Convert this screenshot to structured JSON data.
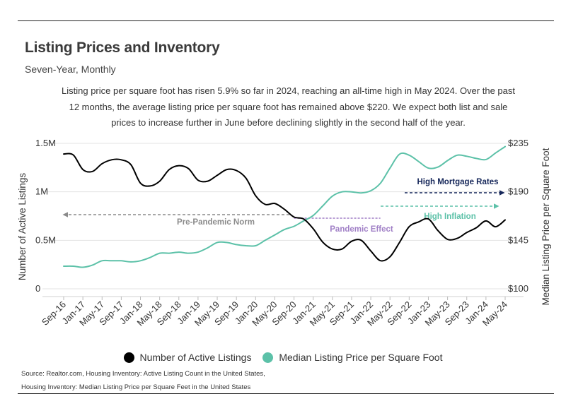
{
  "header": {
    "title": "Listing Prices and Inventory",
    "subtitle": "Seven-Year, Monthly",
    "description": "Listing price per square foot has risen 5.9% so far in 2024, reaching an all-time high in May 2024. Over the past 12 months, the average listing price per square foot has remained above $220. We expect both list and sale prices to increase further in June before declining slightly in the second half of the year."
  },
  "colors": {
    "listings": "#000000",
    "price": "#5cc1a8",
    "pandemic": "#a07fc6",
    "mortgage": "#16275a",
    "norm": "#8a8a8a"
  },
  "chart_data": {
    "type": "line",
    "x_tick_labels": [
      "Sep-16",
      "Jan-17",
      "May-17",
      "Sep-17",
      "Jan-18",
      "May-18",
      "Sep-18",
      "Jan-19",
      "May-19",
      "Sep-19",
      "Jan-20",
      "May-20",
      "Sep-20",
      "Jan-21",
      "May-21",
      "Sep-21",
      "Jan-22",
      "May-22",
      "Sep-22",
      "Jan-23",
      "May-23",
      "Sep-23",
      "Jan-24",
      "May-24"
    ],
    "x_range": [
      "2016-09",
      "2024-05"
    ],
    "y_left": {
      "label": "Number of Active Listings",
      "range": [
        0,
        1500000
      ],
      "tick_labels": [
        "0",
        "0.5M",
        "1M",
        "1.5M"
      ],
      "ticks": [
        0,
        500000,
        1000000,
        1500000
      ]
    },
    "y_right": {
      "label": "Median Listing Price per Square Foot",
      "range": [
        100,
        235
      ],
      "tick_labels": [
        "$100",
        "$145",
        "$190",
        "$235"
      ],
      "ticks": [
        100,
        145,
        190,
        235
      ]
    },
    "series": [
      {
        "name": "Number of Active Listings",
        "axis": "left",
        "points": [
          [
            "2016-09",
            1390000
          ],
          [
            "2016-11",
            1380000
          ],
          [
            "2017-01",
            1230000
          ],
          [
            "2017-03",
            1210000
          ],
          [
            "2017-05",
            1290000
          ],
          [
            "2017-07",
            1330000
          ],
          [
            "2017-09",
            1330000
          ],
          [
            "2017-11",
            1280000
          ],
          [
            "2018-01",
            1090000
          ],
          [
            "2018-03",
            1060000
          ],
          [
            "2018-05",
            1110000
          ],
          [
            "2018-07",
            1230000
          ],
          [
            "2018-09",
            1270000
          ],
          [
            "2018-11",
            1240000
          ],
          [
            "2019-01",
            1120000
          ],
          [
            "2019-03",
            1110000
          ],
          [
            "2019-05",
            1170000
          ],
          [
            "2019-07",
            1230000
          ],
          [
            "2019-09",
            1220000
          ],
          [
            "2019-11",
            1140000
          ],
          [
            "2020-01",
            960000
          ],
          [
            "2020-03",
            870000
          ],
          [
            "2020-05",
            880000
          ],
          [
            "2020-07",
            820000
          ],
          [
            "2020-09",
            740000
          ],
          [
            "2020-11",
            720000
          ],
          [
            "2021-01",
            620000
          ],
          [
            "2021-03",
            480000
          ],
          [
            "2021-05",
            410000
          ],
          [
            "2021-07",
            410000
          ],
          [
            "2021-09",
            490000
          ],
          [
            "2021-11",
            500000
          ],
          [
            "2022-01",
            390000
          ],
          [
            "2022-03",
            290000
          ],
          [
            "2022-05",
            330000
          ],
          [
            "2022-07",
            480000
          ],
          [
            "2022-09",
            640000
          ],
          [
            "2022-11",
            690000
          ],
          [
            "2023-01",
            720000
          ],
          [
            "2023-03",
            600000
          ],
          [
            "2023-05",
            510000
          ],
          [
            "2023-07",
            520000
          ],
          [
            "2023-09",
            580000
          ],
          [
            "2023-11",
            630000
          ],
          [
            "2024-01",
            700000
          ],
          [
            "2024-03",
            640000
          ],
          [
            "2024-05",
            710000
          ]
        ]
      },
      {
        "name": "Median Listing Price per Square Foot",
        "axis": "right",
        "points": [
          [
            "2016-09",
            121
          ],
          [
            "2016-11",
            121
          ],
          [
            "2017-01",
            120
          ],
          [
            "2017-03",
            122
          ],
          [
            "2017-05",
            126
          ],
          [
            "2017-07",
            126
          ],
          [
            "2017-09",
            126
          ],
          [
            "2017-11",
            125
          ],
          [
            "2018-01",
            126
          ],
          [
            "2018-03",
            129
          ],
          [
            "2018-05",
            133
          ],
          [
            "2018-07",
            133
          ],
          [
            "2018-09",
            134
          ],
          [
            "2018-11",
            133
          ],
          [
            "2019-01",
            134
          ],
          [
            "2019-03",
            138
          ],
          [
            "2019-05",
            143
          ],
          [
            "2019-07",
            143
          ],
          [
            "2019-09",
            141
          ],
          [
            "2019-11",
            140
          ],
          [
            "2020-01",
            140
          ],
          [
            "2020-03",
            145
          ],
          [
            "2020-05",
            150
          ],
          [
            "2020-07",
            155
          ],
          [
            "2020-09",
            158
          ],
          [
            "2020-11",
            163
          ],
          [
            "2021-01",
            168
          ],
          [
            "2021-03",
            177
          ],
          [
            "2021-05",
            186
          ],
          [
            "2021-07",
            190
          ],
          [
            "2021-09",
            190
          ],
          [
            "2021-11",
            189
          ],
          [
            "2022-01",
            191
          ],
          [
            "2022-03",
            198
          ],
          [
            "2022-05",
            212
          ],
          [
            "2022-07",
            225
          ],
          [
            "2022-09",
            224
          ],
          [
            "2022-11",
            218
          ],
          [
            "2023-01",
            212
          ],
          [
            "2023-03",
            213
          ],
          [
            "2023-05",
            219
          ],
          [
            "2023-07",
            224
          ],
          [
            "2023-09",
            223
          ],
          [
            "2023-11",
            221
          ],
          [
            "2024-01",
            220
          ],
          [
            "2024-03",
            226
          ],
          [
            "2024-05",
            232
          ]
        ]
      }
    ],
    "annotations": [
      {
        "text": "Pre-Pandemic Norm",
        "color": "#8a8a8a",
        "x_range": [
          "2016-09",
          "2020-08"
        ]
      },
      {
        "text": "Pandemic Effect",
        "color": "#a07fc6",
        "x_range": [
          "2020-09",
          "2022-03"
        ]
      },
      {
        "text": "High Inflation",
        "color": "#5cc1a8",
        "x_range": [
          "2022-03",
          "2024-05"
        ]
      },
      {
        "text": "High Mortgage Rates",
        "color": "#16275a",
        "x_range": [
          "2022-04",
          "2024-06"
        ]
      }
    ]
  },
  "legend": {
    "items": [
      {
        "label": "Number of Active Listings",
        "color": "#000000"
      },
      {
        "label": "Median Listing Price per Square Foot",
        "color": "#5cc1a8"
      }
    ]
  },
  "footer": {
    "source_line1": "Source:  Realtor.com, Housing Inventory: Active Listing Count in the United States,",
    "source_line2": "Housing Inventory: Median Listing Price per Square Feet in the United States"
  }
}
